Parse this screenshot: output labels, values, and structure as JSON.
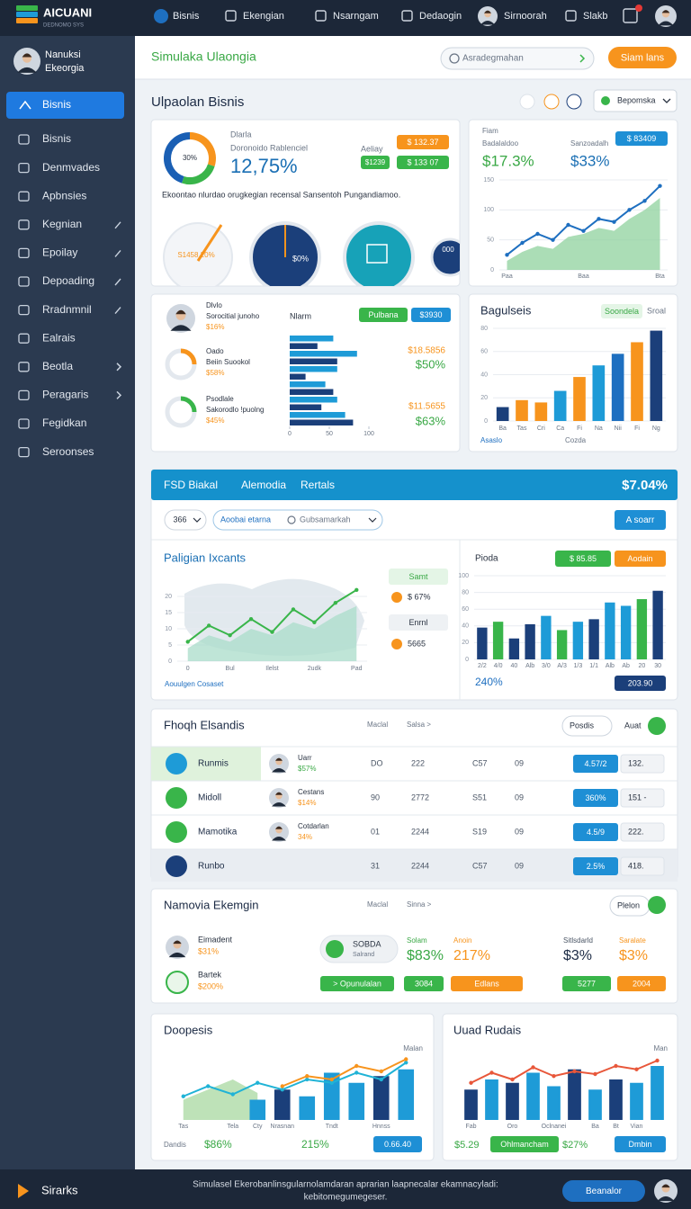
{
  "brand": {
    "name": "AICUANI",
    "tagline": "DEDNOMO SYS"
  },
  "topnav": [
    "Bisnis",
    "Ekengian",
    "Nsarngam",
    "Dedaogin",
    "Sirnoorah",
    "Slakb"
  ],
  "profile": {
    "name": "Nanuksi",
    "org": "Ekeorgia"
  },
  "sidebar": {
    "active": "Bisnis",
    "items": [
      "Bisnis",
      "Denmvades",
      "Apbnsies",
      "Kegnian",
      "Epoilay",
      "Depoading",
      "Rradnmnil",
      "Ealrais",
      "Beotla",
      "Peragaris",
      "Fegidkan",
      "Seroonses"
    ]
  },
  "header": {
    "title": "Simulaka Ulaongia",
    "search": "Asradegmahan",
    "button": "Siam lans"
  },
  "section": {
    "title": "Ulpaolan Bisnis",
    "dropdown": "Bepomska"
  },
  "kpi_card": {
    "label": "Dlarla",
    "sublabel": "Doronoido Rablenciel",
    "kpi": "12,75%",
    "donut": {
      "type": "donut",
      "center": "30%",
      "values": [
        30,
        25,
        45
      ],
      "colors": [
        "#f7941d",
        "#39b54a",
        "#1a5fb4"
      ]
    },
    "mini_label": "Aeliay",
    "badges": [
      "$ 132.37",
      "$ 133 07"
    ],
    "mini_value": "$1239",
    "note": "Ekoontao nlurdao orugkegian recensal Sansentoh Pungandiamoo.",
    "gauges": [
      "S1458 20%",
      "$0%",
      "000"
    ]
  },
  "trend_card": {
    "label": "Fiam",
    "sublabel": "Badalaldoo",
    "kpi1": "$17.3%",
    "kpi2_label": "Sanzoadalh",
    "kpi2": "$33%",
    "button": "$ 83409",
    "chart": {
      "type": "area",
      "categories": [
        "Paa",
        null,
        null,
        null,
        null,
        "Baa",
        null,
        null,
        null,
        null,
        "Bta"
      ],
      "ylim": [
        0,
        150
      ],
      "yticks": [
        0,
        50,
        100,
        150
      ],
      "series": [
        {
          "kind": "area",
          "color": "#8fd19e",
          "values": [
            15,
            30,
            40,
            35,
            55,
            60,
            70,
            65,
            85,
            100,
            120
          ]
        },
        {
          "kind": "line",
          "color": "#1e6fc0",
          "values": [
            25,
            45,
            60,
            50,
            75,
            65,
            85,
            80,
            100,
            115,
            140
          ]
        }
      ]
    }
  },
  "list_card": {
    "rows": [
      {
        "name": "Dlvlo",
        "sub": "Sorocitial junoho",
        "value": "$16%"
      },
      {
        "name": "Oado",
        "sub": "Beiin Suookol",
        "value": "$58%"
      },
      {
        "name": "Psodlale",
        "sub": "Sakorodlo !puolng",
        "value": "$45%"
      }
    ],
    "header": "Nlarm",
    "buttons": [
      "Pulbana",
      "$3930"
    ],
    "kpis": [
      "$18.5856",
      "$50%",
      "$11.5655",
      "$63%"
    ],
    "chart": {
      "type": "hbar",
      "xlim": [
        0,
        100
      ],
      "xticks": [
        0,
        50,
        100
      ],
      "series": [
        {
          "color": "#1e9bd7",
          "values": [
            55,
            85,
            60,
            45,
            60,
            70
          ]
        },
        {
          "color": "#1b3f7a",
          "values": [
            35,
            60,
            20,
            55,
            40,
            80
          ]
        }
      ]
    }
  },
  "bar_card": {
    "title": "Bagulseis",
    "legend": [
      "Soondela",
      "Sroal"
    ],
    "footer": [
      "Asaslo",
      "Cozda"
    ],
    "chart": {
      "type": "bar",
      "categories": [
        "Ba",
        "Tas",
        "Cri",
        "Ca",
        "Fi",
        "Na",
        "Nii",
        "Fi",
        "Ng"
      ],
      "values": [
        12,
        18,
        16,
        26,
        38,
        48,
        58,
        68,
        78
      ],
      "colors": [
        "#1b3f7a",
        "#f7941d",
        "#f7941d",
        "#1e9bd7",
        "#f7941d",
        "#1e9bd7",
        "#1e6fc0",
        "#f7941d",
        "#1b3f7a"
      ],
      "ylim": [
        0,
        80
      ],
      "yticks": [
        0,
        20,
        40,
        60,
        80
      ]
    }
  },
  "wide_card": {
    "tabs": [
      "FSD Biakal",
      "Alemodia",
      "Rertals"
    ],
    "total": "$7.04%",
    "controls": [
      "366",
      "Aoobai etarna",
      "Gubsamarkah",
      "A soarr"
    ],
    "left_title": "Paligian Ixcants",
    "legend": [
      "Samt",
      "$ 67%",
      "Enrnl",
      "5665"
    ],
    "left_footer": "Aouulgen Cosaset",
    "left_chart": {
      "type": "area",
      "categories": [
        "0",
        null,
        "Bul",
        null,
        "Ilelst",
        null,
        "2udk",
        null,
        "Pad"
      ],
      "ylim": [
        0,
        25
      ],
      "yticks": [
        0,
        5,
        10,
        15,
        20
      ],
      "series": [
        {
          "kind": "area",
          "color": "#a9dcc9",
          "values": [
            4,
            8,
            6,
            10,
            8,
            12,
            10,
            14,
            17
          ]
        },
        {
          "kind": "line",
          "color": "#39b54a",
          "values": [
            6,
            11,
            8,
            13,
            9,
            16,
            12,
            18,
            22
          ]
        }
      ]
    },
    "right_title": "Pioda",
    "right_buttons": [
      "$ 85.85",
      "Aodain"
    ],
    "right_footer": "240%",
    "right_button": "203.90",
    "right_chart": {
      "type": "bar",
      "categories": [
        "2/2",
        "4/0",
        "40",
        "Alb",
        "3/0",
        "A/3",
        "1/3",
        "1/1",
        "Alb",
        "Ab",
        "20",
        "30"
      ],
      "values": [
        38,
        45,
        25,
        42,
        52,
        35,
        45,
        48,
        68,
        64,
        72,
        82
      ],
      "colors": [
        "#1b3f7a",
        "#39b54a",
        "#1b3f7a",
        "#1b3f7a",
        "#1e9bd7",
        "#39b54a",
        "#1e9bd7",
        "#1b3f7a",
        "#1e9bd7",
        "#1e9bd7",
        "#39b54a",
        "#1b3f7a"
      ],
      "ylim": [
        0,
        100
      ],
      "yticks": [
        0,
        20,
        40,
        60,
        80,
        100
      ]
    }
  },
  "table": {
    "title": "Fhoqh Elsandis",
    "links": [
      "Maclal",
      "Salsa >"
    ],
    "dropdown": "Posdis",
    "action": "Auat",
    "rows": [
      {
        "name": "Runmis",
        "person": "Uarr",
        "share": "$57%",
        "cols": [
          "DO",
          "222",
          "C57",
          "09"
        ],
        "badge": "4.57/2",
        "select": "132."
      },
      {
        "name": "Midoll",
        "person": "Cestans",
        "share": "$14%",
        "cols": [
          "90",
          "2772",
          "S51",
          "09"
        ],
        "badge": "360%",
        "select": "151 -"
      },
      {
        "name": "Mamotika",
        "person": "Cotdarlan",
        "share": "34%",
        "cols": [
          "01",
          "2244",
          "S19",
          "09"
        ],
        "badge": "4.5/9",
        "select": "222."
      },
      {
        "name": "Runbo",
        "cols": [
          "31",
          "2244",
          "C57",
          "09"
        ],
        "badge": "2.5%",
        "select": "418."
      }
    ]
  },
  "summary": {
    "title": "Namovia Ekemgin",
    "links": [
      "Maclal",
      "Sinna >"
    ],
    "dropdown": "Plelon",
    "people": [
      {
        "name": "Eimadent",
        "value": "$31%"
      },
      {
        "name": "Bartek",
        "value": "$200%"
      }
    ],
    "chip": {
      "title": "SOBDA",
      "sub": "Salrand"
    },
    "kpis": [
      {
        "label": "Solam",
        "value": "$83%"
      },
      {
        "label": "Anoin",
        "value": "217%"
      },
      {
        "label": "Sitlsdarld",
        "value": "$3%"
      },
      {
        "label": "Saralate",
        "value": "$3%"
      }
    ],
    "buttons": [
      "> Opunulalan",
      "3084",
      "Edlans",
      "5277",
      "2004"
    ]
  },
  "left_bottom": {
    "title": "Doopesis",
    "legend": "Malan",
    "footer": [
      "Dandis",
      "$86%",
      "215%",
      "0.66.40"
    ],
    "chart": {
      "type": "combo",
      "categories": [
        "Tas",
        null,
        "Tela",
        "Cty",
        "Nrasnan",
        null,
        "Tndt",
        null,
        "Hnnss",
        null
      ],
      "ylim": [
        0,
        100
      ],
      "series": [
        {
          "kind": "area",
          "color": "#a8d8a0",
          "values": [
            30,
            45,
            60,
            40,
            null,
            null,
            null,
            null,
            null,
            null
          ]
        },
        {
          "kind": "bar",
          "color": "#1e9bd7",
          "colors": [
            "#1e9bd7",
            "#1e9bd7",
            "#1e9bd7",
            "#1e9bd7",
            "#1b3f7a",
            "#1e9bd7",
            "#1e9bd7",
            "#1e9bd7",
            "#1b3f7a",
            "#1e9bd7"
          ],
          "values": [
            null,
            null,
            null,
            30,
            45,
            35,
            70,
            55,
            65,
            75
          ]
        },
        {
          "kind": "line",
          "color": "#20b3d6",
          "values": [
            35,
            50,
            38,
            55,
            45,
            60,
            55,
            70,
            60,
            85
          ]
        },
        {
          "kind": "line",
          "color": "#f7941d",
          "values": [
            null,
            null,
            null,
            null,
            50,
            65,
            60,
            80,
            72,
            90
          ]
        }
      ]
    }
  },
  "right_bottom": {
    "title": "Uuad Rudais",
    "legend": "Man",
    "footer": [
      "$5.29",
      "Ohlmancham",
      "$27%",
      "Dmbin"
    ],
    "chart": {
      "type": "combo",
      "categories": [
        "Fab",
        null,
        "Oro",
        null,
        "Oclnanei",
        null,
        "Ba",
        "Bt",
        "Vian",
        null
      ],
      "ylim": [
        0,
        100
      ],
      "series": [
        {
          "kind": "bar",
          "color": "#1e9bd7",
          "colors": [
            "#1b3f7a",
            "#1e9bd7",
            "#1b3f7a",
            "#1e9bd7",
            "#1e9bd7",
            "#1b3f7a",
            "#1e9bd7",
            "#1b3f7a",
            "#1e9bd7",
            "#1e9bd7"
          ],
          "values": [
            45,
            60,
            55,
            70,
            50,
            75,
            45,
            60,
            55,
            80
          ]
        },
        {
          "kind": "line",
          "color": "#e8573a",
          "values": [
            55,
            70,
            60,
            78,
            65,
            72,
            68,
            80,
            75,
            88
          ]
        }
      ]
    }
  },
  "footer": {
    "brand": "Sirarks",
    "text": [
      "Simulasel Ekerobanlinsgularnolamdaran aprarian laapnecalar ekamnacyladi:",
      "kebitomegumegeser."
    ],
    "button": "Beanalor"
  }
}
